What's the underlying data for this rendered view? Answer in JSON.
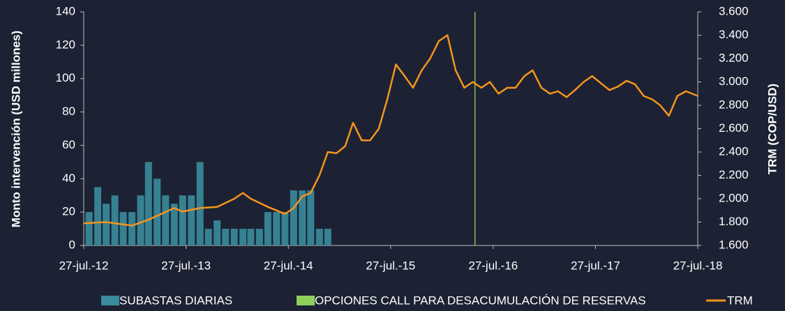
{
  "chart_data": {
    "type": "combo",
    "y_label": "Monto intervención (USD millones)",
    "y2_label": "TRM (COP/USD)",
    "xlim": [
      "2012-07-27",
      "2018-07-27"
    ],
    "xticks": [
      {
        "value": "2012-07-27",
        "label": "27-jul.-12"
      },
      {
        "value": "2013-07-27",
        "label": "27-jul.-13"
      },
      {
        "value": "2014-07-27",
        "label": "27-jul.-14"
      },
      {
        "value": "2015-07-27",
        "label": "27-jul.-15"
      },
      {
        "value": "2016-07-27",
        "label": "27-jul.-16"
      },
      {
        "value": "2017-07-27",
        "label": "27-jul.-17"
      },
      {
        "value": "2018-07-27",
        "label": "27-jul.-18"
      }
    ],
    "ylim": [
      0,
      140
    ],
    "yticks": [
      0,
      20,
      40,
      60,
      80,
      100,
      120,
      140
    ],
    "y2lim": [
      1600,
      3600
    ],
    "y2ticks": [
      {
        "value": 1600,
        "label": "1.600"
      },
      {
        "value": 1800,
        "label": "1.800"
      },
      {
        "value": 2000,
        "label": "2.000"
      },
      {
        "value": 2200,
        "label": "2.200"
      },
      {
        "value": 2400,
        "label": "2.400"
      },
      {
        "value": 2600,
        "label": "2.600"
      },
      {
        "value": 2800,
        "label": "2.800"
      },
      {
        "value": 3000,
        "label": "3.000"
      },
      {
        "value": 3200,
        "label": "3.200"
      },
      {
        "value": 3400,
        "label": "3.400"
      },
      {
        "value": 3600,
        "label": "3.600"
      }
    ],
    "series": [
      {
        "name": "SUBASTAS DIARIAS",
        "type": "bar",
        "color": "#3a8c9c",
        "x": [
          "2012-08-15",
          "2012-09-15",
          "2012-10-15",
          "2012-11-15",
          "2012-12-15",
          "2013-01-15",
          "2013-02-15",
          "2013-03-15",
          "2013-04-15",
          "2013-05-15",
          "2013-06-15",
          "2013-07-15",
          "2013-08-15",
          "2013-09-15",
          "2013-10-15",
          "2013-11-15",
          "2013-12-15",
          "2014-01-15",
          "2014-02-15",
          "2014-03-15",
          "2014-04-15",
          "2014-05-15",
          "2014-06-15",
          "2014-07-15",
          "2014-08-15",
          "2014-09-15",
          "2014-10-15",
          "2014-11-15",
          "2014-12-15"
        ],
        "values": [
          20,
          35,
          25,
          30,
          20,
          20,
          30,
          50,
          40,
          30,
          25,
          30,
          30,
          50,
          10,
          15,
          10,
          10,
          10,
          10,
          10,
          20,
          20,
          20,
          33,
          33,
          33,
          10,
          10
        ]
      },
      {
        "name": "OPCIONES CALL PARA DESACUMULACIÓN DE RESERVAS",
        "type": "bar",
        "color": "#8fd05a",
        "x": [
          "2016-05-23"
        ],
        "values": [
          140
        ]
      },
      {
        "name": "TRM",
        "type": "line",
        "axis": "y2",
        "color": "#f7941d",
        "x": [
          "2012-07-27",
          "2012-10-15",
          "2013-01-15",
          "2013-03-15",
          "2013-06-15",
          "2013-07-15",
          "2013-09-15",
          "2013-11-15",
          "2014-01-15",
          "2014-02-15",
          "2014-03-15",
          "2014-05-15",
          "2014-07-15",
          "2014-08-15",
          "2014-09-15",
          "2014-10-15",
          "2014-11-15",
          "2014-12-15",
          "2015-01-15",
          "2015-02-15",
          "2015-03-15",
          "2015-04-15",
          "2015-05-15",
          "2015-06-15",
          "2015-07-15",
          "2015-08-15",
          "2015-09-15",
          "2015-10-15",
          "2015-11-15",
          "2015-12-15",
          "2016-01-15",
          "2016-02-15",
          "2016-03-15",
          "2016-04-15",
          "2016-05-15",
          "2016-06-15",
          "2016-07-15",
          "2016-08-15",
          "2016-09-15",
          "2016-10-15",
          "2016-11-15",
          "2016-12-15",
          "2017-01-15",
          "2017-02-15",
          "2017-03-15",
          "2017-04-15",
          "2017-05-15",
          "2017-06-15",
          "2017-07-15",
          "2017-08-15",
          "2017-09-15",
          "2017-10-15",
          "2017-11-15",
          "2017-12-15",
          "2018-01-15",
          "2018-02-15",
          "2018-03-15",
          "2018-04-15",
          "2018-05-15",
          "2018-06-15",
          "2018-07-27"
        ],
        "values": [
          1790,
          1800,
          1770,
          1820,
          1920,
          1890,
          1920,
          1930,
          2000,
          2050,
          2000,
          1930,
          1870,
          1920,
          2020,
          2050,
          2200,
          2400,
          2390,
          2450,
          2650,
          2500,
          2500,
          2600,
          2850,
          3150,
          3050,
          2950,
          3100,
          3200,
          3350,
          3400,
          3100,
          2950,
          3000,
          2950,
          3000,
          2900,
          2950,
          2950,
          3050,
          3100,
          2950,
          2900,
          2920,
          2870,
          2930,
          3000,
          3050,
          2990,
          2930,
          2960,
          3010,
          2980,
          2880,
          2850,
          2800,
          2710,
          2880,
          2920,
          2880
        ]
      }
    ]
  }
}
